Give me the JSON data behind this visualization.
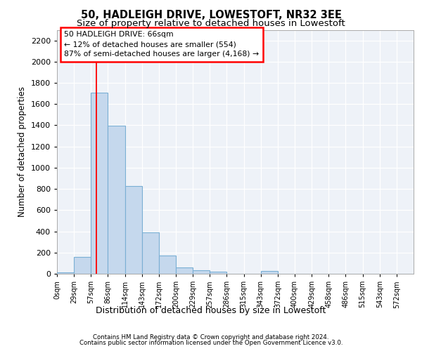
{
  "title1": "50, HADLEIGH DRIVE, LOWESTOFT, NR32 3EE",
  "title2": "Size of property relative to detached houses in Lowestoft",
  "xlabel": "Distribution of detached houses by size in Lowestoft",
  "ylabel": "Number of detached properties",
  "bar_color": "#c5d8ed",
  "bar_edge_color": "#7aafd4",
  "bin_labels": [
    "0sqm",
    "29sqm",
    "57sqm",
    "86sqm",
    "114sqm",
    "143sqm",
    "172sqm",
    "200sqm",
    "229sqm",
    "257sqm",
    "286sqm",
    "315sqm",
    "343sqm",
    "372sqm",
    "400sqm",
    "429sqm",
    "458sqm",
    "486sqm",
    "515sqm",
    "543sqm",
    "572sqm"
  ],
  "bar_values": [
    10,
    160,
    1710,
    1395,
    830,
    390,
    170,
    60,
    30,
    20,
    0,
    0,
    25,
    0,
    0,
    0,
    0,
    0,
    0,
    0,
    0
  ],
  "ylim": [
    0,
    2300
  ],
  "yticks": [
    0,
    200,
    400,
    600,
    800,
    1000,
    1200,
    1400,
    1600,
    1800,
    2000,
    2200
  ],
  "property_line_x": 66,
  "bin_width": 28.57,
  "annotation_line1": "50 HADLEIGH DRIVE: 66sqm",
  "annotation_line2": "← 12% of detached houses are smaller (554)",
  "annotation_line3": "87% of semi-detached houses are larger (4,168) →",
  "background_color": "#eef2f8",
  "footer1": "Contains HM Land Registry data © Crown copyright and database right 2024.",
  "footer2": "Contains public sector information licensed under the Open Government Licence v3.0."
}
